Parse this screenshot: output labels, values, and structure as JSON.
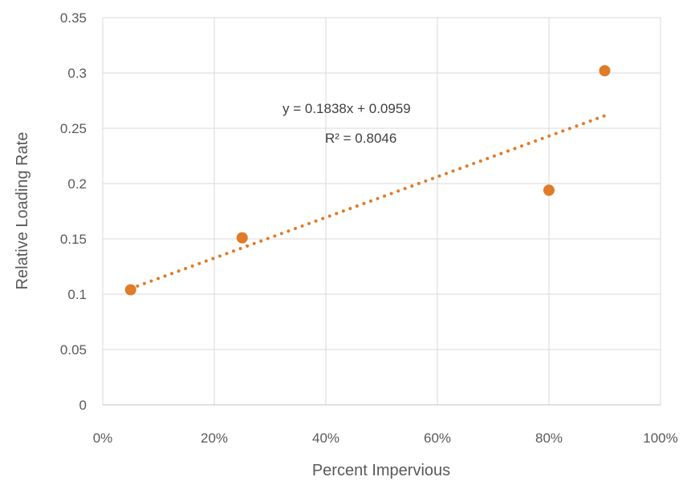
{
  "chart_data": {
    "type": "scatter",
    "title": "",
    "xlabel": "Percent Impervious",
    "ylabel": "Relative Loading Rate",
    "xlim": [
      0,
      1
    ],
    "ylim": [
      0,
      0.35
    ],
    "x_tick_labels": [
      "0%",
      "20%",
      "40%",
      "60%",
      "80%",
      "100%"
    ],
    "y_tick_labels": [
      "0",
      "0.05",
      "0.1",
      "0.15",
      "0.2",
      "0.25",
      "0.3",
      "0.35"
    ],
    "grid": true,
    "legend": "none",
    "series": [
      {
        "x": [
          0.05,
          0.25,
          0.8,
          0.9
        ],
        "y": [
          0.104,
          0.151,
          0.194,
          0.302
        ],
        "color": "#E07B28"
      }
    ],
    "trendline": {
      "type": "linear",
      "slope": 0.1838,
      "intercept": 0.0959,
      "x_range": [
        0.05,
        0.9
      ],
      "style": "dotted",
      "color": "#E07B28",
      "equation_label": "y = 0.1838x  + 0.0959",
      "r2_label": "R² = 0.8046"
    }
  }
}
